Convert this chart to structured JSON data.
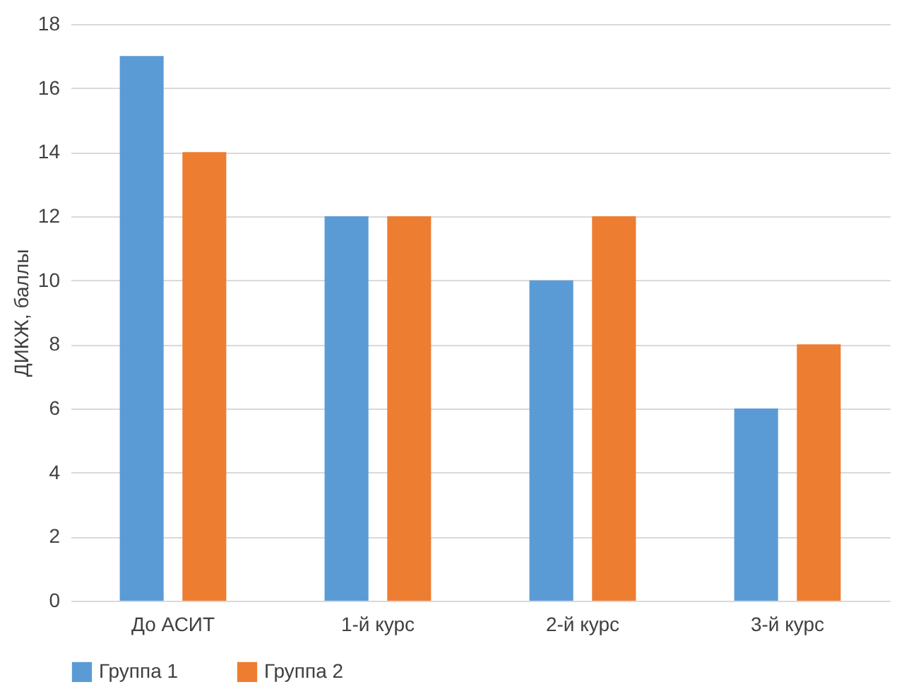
{
  "chart_data": {
    "type": "bar",
    "ylabel": "ДИКЖ, баллы",
    "categories": [
      "До АСИТ",
      "1-й курс",
      "2-й курс",
      "3-й курс"
    ],
    "series": [
      {
        "name": "Группа 1",
        "color": "#5b9bd5",
        "values": [
          17,
          12,
          10,
          6
        ]
      },
      {
        "name": "Группа 2",
        "color": "#ed7d31",
        "values": [
          14,
          12,
          12,
          8
        ]
      }
    ],
    "ylim": [
      0,
      18
    ],
    "yticks": [
      0,
      2,
      4,
      6,
      8,
      10,
      12,
      14,
      16,
      18
    ],
    "grid": "y",
    "legend": "bottom"
  }
}
